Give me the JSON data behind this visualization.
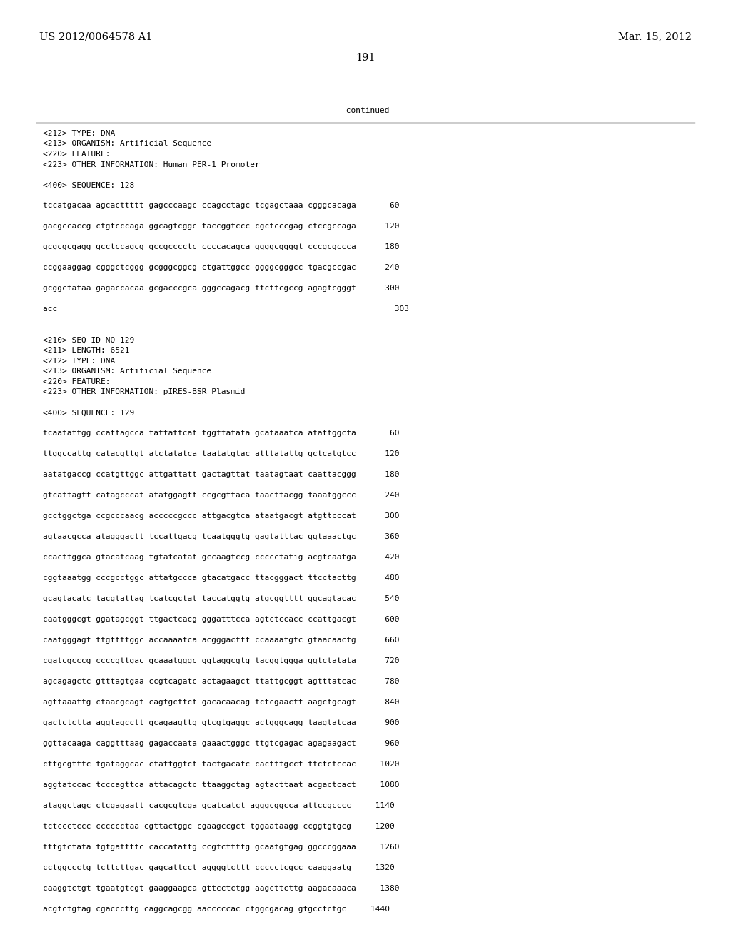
{
  "header_left": "US 2012/0064578 A1",
  "header_right": "Mar. 15, 2012",
  "page_number": "191",
  "continued_text": "-continued",
  "background_color": "#ffffff",
  "text_color": "#000000",
  "font_size_header": 10.5,
  "font_size_mono": 8.0,
  "page_width": 10.24,
  "page_height": 13.2,
  "content_lines": [
    "<212> TYPE: DNA",
    "<213> ORGANISM: Artificial Sequence",
    "<220> FEATURE:",
    "<223> OTHER INFORMATION: Human PER-1 Promoter",
    "",
    "<400> SEQUENCE: 128",
    "",
    "tccatgacaa agcacttttt gagcccaagc ccagcctagc tcgagctaaa cgggcacaga       60",
    "",
    "gacgccaccg ctgtcccaga ggcagtcggc taccggtccc cgctcccgag ctccgccaga      120",
    "",
    "gcgcgcgagg gcctccagcg gccgcccctc ccccacagca ggggcggggt cccgcgccca      180",
    "",
    "ccggaaggag cgggctcggg gcgggcggcg ctgattggcc ggggcgggcc tgacgccgac      240",
    "",
    "gcggctataa gagaccacaa gcgacccgca gggccagacg ttcttcgccg agagtcgggt      300",
    "",
    "acc                                                                      303",
    "",
    "",
    "<210> SEQ ID NO 129",
    "<211> LENGTH: 6521",
    "<212> TYPE: DNA",
    "<213> ORGANISM: Artificial Sequence",
    "<220> FEATURE:",
    "<223> OTHER INFORMATION: pIRES-BSR Plasmid",
    "",
    "<400> SEQUENCE: 129",
    "",
    "tcaatattgg ccattagcca tattattcat tggttatata gcataaatca atattggcta       60",
    "",
    "ttggccattg catacgttgt atctatatca taatatgtac atttatattg gctcatgtcc      120",
    "",
    "aatatgaccg ccatgttggc attgattatt gactagttat taatagtaat caattacggg      180",
    "",
    "gtcattagtt catagcccat atatggagtt ccgcgttaca taacttacgg taaatggccc      240",
    "",
    "gcctggctga ccgcccaacg acccccgccc attgacgtca ataatgacgt atgttcccat      300",
    "",
    "agtaacgcca atagggactt tccattgacg tcaatgggtg gagtatttac ggtaaactgc      360",
    "",
    "ccacttggca gtacatcaag tgtatcatat gccaagtccg ccccctatig acgtcaatga      420",
    "",
    "cggtaaatgg cccgcctggc attatgccca gtacatgacc ttacgggact ttcctacttg      480",
    "",
    "gcagtacatc tacgtattag tcatcgctat taccatggtg atgcggtttt ggcagtacac      540",
    "",
    "caatgggcgt ggatagcggt ttgactcacg gggatttcca agtctccacc ccattgacgt      600",
    "",
    "caatgggagt ttgttttggc accaaaatca acgggacttt ccaaaatgtc gtaacaactg      660",
    "",
    "cgatcgcccg ccccgttgac gcaaatgggc ggtaggcgtg tacggtggga ggtctatata      720",
    "",
    "agcagagctc gtttagtgaa ccgtcagatc actagaagct ttattgcggt agtttatcac      780",
    "",
    "agttaaattg ctaacgcagt cagtgcttct gacacaacag tctcgaactt aagctgcagt      840",
    "",
    "gactctctta aggtagcctt gcagaagttg gtcgtgaggc actgggcagg taagtatcaa      900",
    "",
    "ggttacaaga caggtttaag gagaccaata gaaactgggc ttgtcgagac agagaagact      960",
    "",
    "cttgcgtttc tgataggcac ctattggtct tactgacatc cactttgcct ttctctccac     1020",
    "",
    "aggtatccac tcccagttca attacagctc ttaaggctag agtacttaat acgactcact     1080",
    "",
    "ataggctagc ctcgagaatt cacgcgtcga gcatcatct agggcggcca attccgcccc     1140",
    "",
    "tctccctccc cccccctaa cgttactggc cgaagccgct tggaataagg ccggtgtgcg     1200",
    "",
    "tttgtctata tgtgattttc caccatattg ccgtcttttg gcaatgtgag ggcccggaaa     1260",
    "",
    "cctggccctg tcttcttgac gagcattcct aggggtcttt ccccctcgcc caaggaatg     1320",
    "",
    "caaggtctgt tgaatgtcgt gaaggaagca gttcctctgg aagcttcttg aagacaaaca     1380",
    "",
    "acgtctgtag cgacccttg caggcagcgg aacccccac ctggcgacag gtgcctctgc     1440"
  ]
}
